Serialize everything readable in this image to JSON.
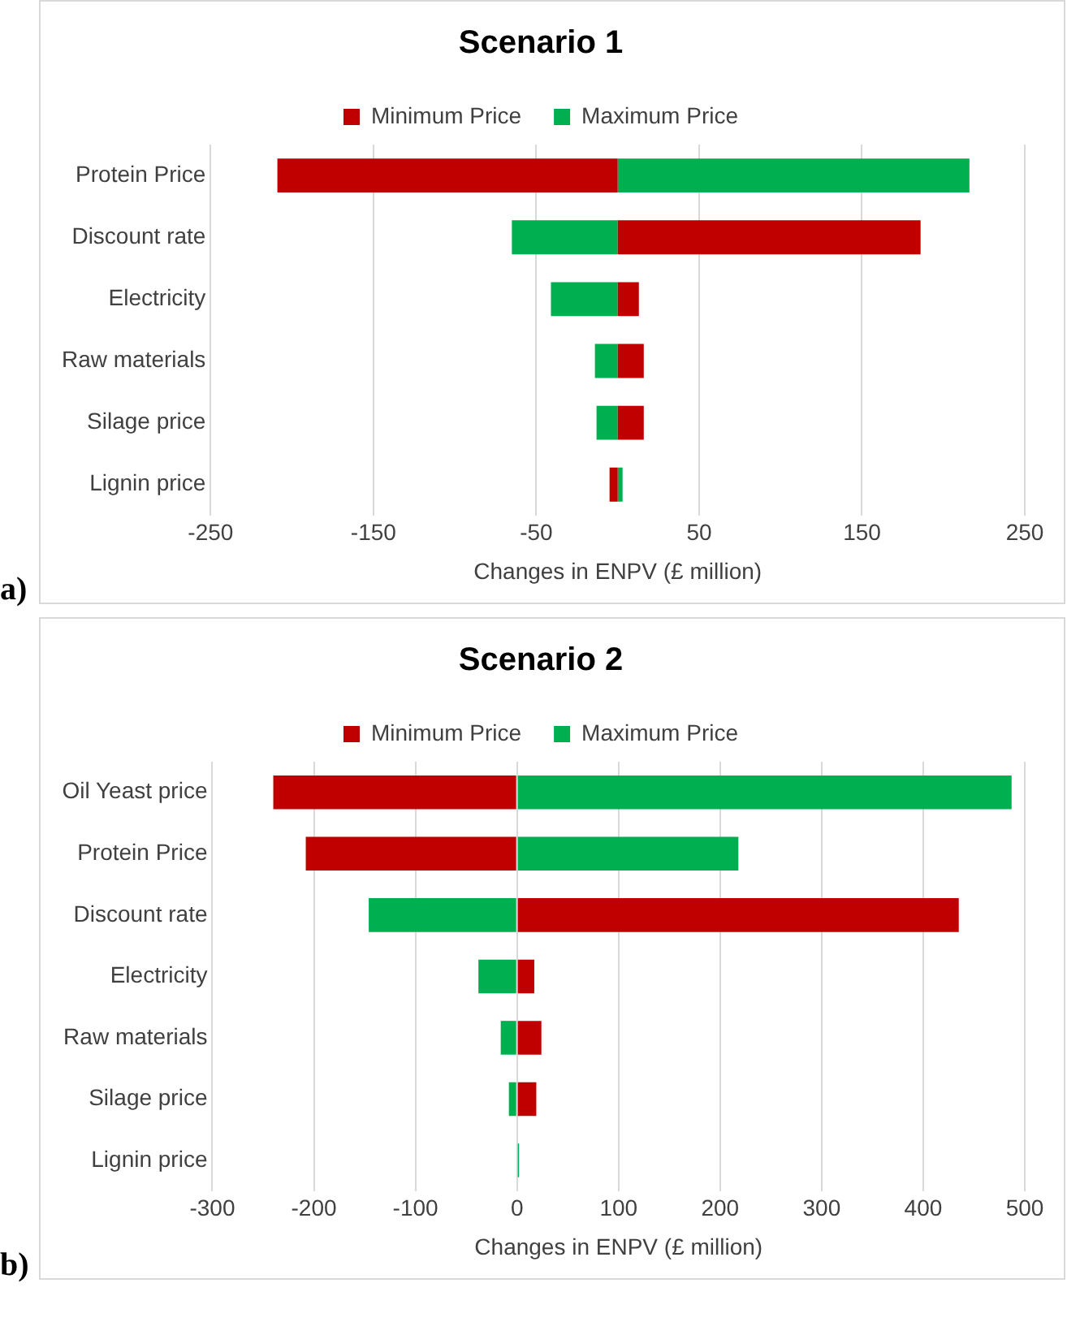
{
  "chart_data": [
    {
      "type": "bar",
      "orientation": "horizontal",
      "title": "Scenario 1",
      "xlabel": "Changes in ENPV (£ million)",
      "categories": [
        "Protein Price",
        "Discount rate",
        "Electricity",
        "Raw materials",
        "Silage price",
        "Lignin price"
      ],
      "series": [
        {
          "name": "Minimum Price",
          "color": "#c00000",
          "values": [
            -209,
            186,
            13,
            16,
            16,
            -5
          ]
        },
        {
          "name": "Maximum Price",
          "color": "#00b050",
          "values": [
            216,
            -65,
            -41,
            -14,
            -13,
            3
          ]
        }
      ],
      "stacked": true,
      "xlim": [
        -250,
        250
      ],
      "xticks": [
        -250,
        -150,
        -50,
        50,
        150,
        250
      ],
      "grid": "x",
      "legend": "top",
      "annotations": [
        "a)"
      ]
    },
    {
      "type": "bar",
      "orientation": "horizontal",
      "title": "Scenario 2",
      "xlabel": "Changes in ENPV (£ million)",
      "categories": [
        "Oil Yeast price",
        "Protein Price",
        "Discount rate",
        "Electricity",
        "Raw materials",
        "Silage price",
        "Lignin price"
      ],
      "series": [
        {
          "name": "Minimum Price",
          "color": "#c00000",
          "values": [
            -240,
            -208,
            435,
            17,
            24,
            19,
            0
          ]
        },
        {
          "name": "Maximum Price",
          "color": "#00b050",
          "values": [
            487,
            218,
            -146,
            -38,
            -16,
            -8,
            2
          ]
        }
      ],
      "stacked": true,
      "xlim": [
        -300,
        500
      ],
      "xticks": [
        -300,
        -200,
        -100,
        0,
        100,
        200,
        300,
        400,
        500
      ],
      "grid": "x",
      "legend": "top",
      "annotations": [
        "b)"
      ]
    }
  ]
}
